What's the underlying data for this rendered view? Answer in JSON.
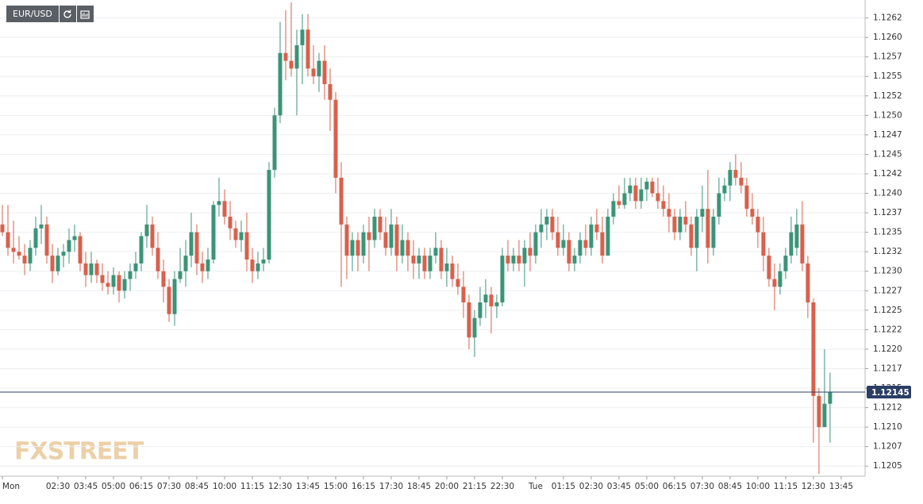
{
  "chart_data": {
    "type": "candlestick",
    "symbol": "EUR/USD",
    "watermark": "FXSTREET",
    "up_color": "#3b9478",
    "down_color": "#d9604c",
    "grid": true,
    "last_price": 1.12145,
    "xlim": [
      -0.43,
      155.3
    ],
    "ylim": [
      1.12037,
      1.12648
    ],
    "xticks": [
      {
        "value": 0,
        "label": "Mon"
      },
      {
        "value": 10,
        "label": "02:30"
      },
      {
        "value": 15,
        "label": "03:45"
      },
      {
        "value": 20,
        "label": "05:00"
      },
      {
        "value": 25,
        "label": "06:15"
      },
      {
        "value": 30,
        "label": "07:30"
      },
      {
        "value": 35,
        "label": "08:45"
      },
      {
        "value": 40,
        "label": "10:00"
      },
      {
        "value": 45,
        "label": "11:15"
      },
      {
        "value": 50,
        "label": "12:30"
      },
      {
        "value": 55,
        "label": "13:45"
      },
      {
        "value": 60,
        "label": "15:00"
      },
      {
        "value": 65,
        "label": "16:15"
      },
      {
        "value": 70,
        "label": "17:30"
      },
      {
        "value": 75,
        "label": "18:45"
      },
      {
        "value": 80,
        "label": "20:00"
      },
      {
        "value": 85,
        "label": "21:15"
      },
      {
        "value": 90,
        "label": "22:30"
      },
      {
        "value": 96,
        "label": "Tue"
      },
      {
        "value": 101,
        "label": "01:15"
      },
      {
        "value": 106,
        "label": "02:30"
      },
      {
        "value": 111,
        "label": "03:45"
      },
      {
        "value": 116,
        "label": "05:00"
      },
      {
        "value": 121,
        "label": "06:15"
      },
      {
        "value": 126,
        "label": "07:30"
      },
      {
        "value": 131,
        "label": "08:45"
      },
      {
        "value": 136,
        "label": "10:00"
      },
      {
        "value": 141,
        "label": "11:15"
      },
      {
        "value": 146,
        "label": "12:30"
      },
      {
        "value": 151,
        "label": "13:45"
      }
    ],
    "yticks": [
      {
        "value": 1.1205,
        "label": "1.1205"
      },
      {
        "value": 1.12075,
        "label": "1.1207"
      },
      {
        "value": 1.121,
        "label": "1.1210"
      },
      {
        "value": 1.12125,
        "label": "1.1212"
      },
      {
        "value": 1.1215,
        "label": "1.1215"
      },
      {
        "value": 1.12175,
        "label": "1.1217"
      },
      {
        "value": 1.122,
        "label": "1.1220"
      },
      {
        "value": 1.12225,
        "label": "1.1222"
      },
      {
        "value": 1.1225,
        "label": "1.1225"
      },
      {
        "value": 1.12275,
        "label": "1.1227"
      },
      {
        "value": 1.123,
        "label": "1.1230"
      },
      {
        "value": 1.12325,
        "label": "1.1232"
      },
      {
        "value": 1.1235,
        "label": "1.1235"
      },
      {
        "value": 1.12375,
        "label": "1.1237"
      },
      {
        "value": 1.124,
        "label": "1.1240"
      },
      {
        "value": 1.12425,
        "label": "1.1242"
      },
      {
        "value": 1.1245,
        "label": "1.1245"
      },
      {
        "value": 1.12475,
        "label": "1.1247"
      },
      {
        "value": 1.125,
        "label": "1.1250"
      },
      {
        "value": 1.12525,
        "label": "1.1252"
      },
      {
        "value": 1.1255,
        "label": "1.1255"
      },
      {
        "value": 1.12575,
        "label": "1.1257"
      },
      {
        "value": 1.126,
        "label": "1.1260"
      },
      {
        "value": 1.12625,
        "label": "1.1262"
      }
    ],
    "candles": [
      [
        1.1236,
        1.12385,
        1.12345,
        1.1235
      ],
      [
        1.1235,
        1.12385,
        1.1232,
        1.1233
      ],
      [
        1.1233,
        1.12365,
        1.1231,
        1.12325
      ],
      [
        1.12325,
        1.12345,
        1.12315,
        1.1232
      ],
      [
        1.1232,
        1.12335,
        1.12295,
        1.1231
      ],
      [
        1.1231,
        1.1234,
        1.123,
        1.1233
      ],
      [
        1.1233,
        1.1237,
        1.1232,
        1.12355
      ],
      [
        1.12355,
        1.12385,
        1.12335,
        1.1236
      ],
      [
        1.1236,
        1.1237,
        1.1231,
        1.1232
      ],
      [
        1.1232,
        1.12335,
        1.12285,
        1.123
      ],
      [
        1.123,
        1.1233,
        1.12295,
        1.1232
      ],
      [
        1.1232,
        1.12335,
        1.12305,
        1.12325
      ],
      [
        1.12325,
        1.12355,
        1.1231,
        1.1234
      ],
      [
        1.1234,
        1.1236,
        1.12325,
        1.12345
      ],
      [
        1.12345,
        1.1235,
        1.123,
        1.1231
      ],
      [
        1.1231,
        1.12325,
        1.1228,
        1.12295
      ],
      [
        1.12295,
        1.12325,
        1.12285,
        1.1231
      ],
      [
        1.1231,
        1.12315,
        1.12285,
        1.12295
      ],
      [
        1.12295,
        1.1231,
        1.12275,
        1.12285
      ],
      [
        1.12285,
        1.123,
        1.1227,
        1.1228
      ],
      [
        1.1228,
        1.12305,
        1.1227,
        1.12295
      ],
      [
        1.12295,
        1.123,
        1.1226,
        1.12275
      ],
      [
        1.12275,
        1.123,
        1.12265,
        1.1229
      ],
      [
        1.1229,
        1.1231,
        1.12275,
        1.123
      ],
      [
        1.123,
        1.12325,
        1.1229,
        1.1231
      ],
      [
        1.1231,
        1.1235,
        1.123,
        1.12345
      ],
      [
        1.12345,
        1.12385,
        1.1233,
        1.1236
      ],
      [
        1.1236,
        1.1237,
        1.1232,
        1.1233
      ],
      [
        1.1233,
        1.1235,
        1.1229,
        1.123
      ],
      [
        1.123,
        1.12315,
        1.1226,
        1.1228
      ],
      [
        1.1228,
        1.1229,
        1.12235,
        1.12245
      ],
      [
        1.12245,
        1.123,
        1.1223,
        1.1229
      ],
      [
        1.1229,
        1.1233,
        1.12285,
        1.123
      ],
      [
        1.123,
        1.1234,
        1.1228,
        1.1232
      ],
      [
        1.1232,
        1.12375,
        1.12305,
        1.1235
      ],
      [
        1.1235,
        1.1236,
        1.12295,
        1.1231
      ],
      [
        1.1231,
        1.12325,
        1.12285,
        1.123
      ],
      [
        1.123,
        1.1233,
        1.1229,
        1.12315
      ],
      [
        1.12315,
        1.1239,
        1.1231,
        1.12385
      ],
      [
        1.12385,
        1.1242,
        1.1237,
        1.1239
      ],
      [
        1.1239,
        1.12405,
        1.1236,
        1.1237
      ],
      [
        1.1237,
        1.1239,
        1.1234,
        1.12355
      ],
      [
        1.12355,
        1.12365,
        1.1233,
        1.1234
      ],
      [
        1.1234,
        1.12365,
        1.12325,
        1.1235
      ],
      [
        1.1235,
        1.12375,
        1.123,
        1.12315
      ],
      [
        1.12315,
        1.1233,
        1.12285,
        1.123
      ],
      [
        1.123,
        1.12325,
        1.1229,
        1.1231
      ],
      [
        1.1231,
        1.1233,
        1.123,
        1.12315
      ],
      [
        1.12315,
        1.1244,
        1.1231,
        1.1243
      ],
      [
        1.1243,
        1.1251,
        1.1242,
        1.125
      ],
      [
        1.125,
        1.1262,
        1.1249,
        1.1258
      ],
      [
        1.1258,
        1.12635,
        1.12545,
        1.1257
      ],
      [
        1.1257,
        1.12645,
        1.1255,
        1.1256
      ],
      [
        1.1256,
        1.1261,
        1.125,
        1.1259
      ],
      [
        1.1259,
        1.1263,
        1.1254,
        1.1261
      ],
      [
        1.1261,
        1.1263,
        1.1255,
        1.1256
      ],
      [
        1.1256,
        1.1259,
        1.1254,
        1.1255
      ],
      [
        1.1255,
        1.1258,
        1.1253,
        1.1257
      ],
      [
        1.1257,
        1.1259,
        1.1252,
        1.1254
      ],
      [
        1.1254,
        1.1256,
        1.1248,
        1.1252
      ],
      [
        1.1252,
        1.1253,
        1.124,
        1.1242
      ],
      [
        1.1242,
        1.1244,
        1.1228,
        1.1236
      ],
      [
        1.1236,
        1.1237,
        1.1229,
        1.1232
      ],
      [
        1.1232,
        1.1235,
        1.123,
        1.1234
      ],
      [
        1.1234,
        1.1235,
        1.123,
        1.1232
      ],
      [
        1.1232,
        1.1236,
        1.1231,
        1.1235
      ],
      [
        1.1235,
        1.1237,
        1.123,
        1.1234
      ],
      [
        1.1234,
        1.1238,
        1.1233,
        1.1237
      ],
      [
        1.1237,
        1.1238,
        1.1234,
        1.1235
      ],
      [
        1.1235,
        1.1237,
        1.1232,
        1.1233
      ],
      [
        1.1233,
        1.1238,
        1.1232,
        1.1236
      ],
      [
        1.1236,
        1.1237,
        1.123,
        1.1232
      ],
      [
        1.1232,
        1.1236,
        1.1231,
        1.1234
      ],
      [
        1.1234,
        1.1235,
        1.123,
        1.1232
      ],
      [
        1.1232,
        1.1234,
        1.1229,
        1.1231
      ],
      [
        1.1231,
        1.1233,
        1.1229,
        1.1232
      ],
      [
        1.1232,
        1.1233,
        1.1229,
        1.123
      ],
      [
        1.123,
        1.1233,
        1.1229,
        1.1232
      ],
      [
        1.1232,
        1.1235,
        1.1231,
        1.1233
      ],
      [
        1.1233,
        1.1234,
        1.1229,
        1.123
      ],
      [
        1.123,
        1.1233,
        1.1228,
        1.1231
      ],
      [
        1.1231,
        1.1232,
        1.1228,
        1.1229
      ],
      [
        1.1229,
        1.1231,
        1.1227,
        1.1228
      ],
      [
        1.1228,
        1.123,
        1.1224,
        1.1226
      ],
      [
        1.1226,
        1.1227,
        1.122,
        1.12215
      ],
      [
        1.12215,
        1.1225,
        1.1219,
        1.1224
      ],
      [
        1.1224,
        1.1228,
        1.1223,
        1.1226
      ],
      [
        1.1226,
        1.1229,
        1.1224,
        1.1227
      ],
      [
        1.1227,
        1.1228,
        1.1222,
        1.12255
      ],
      [
        1.12255,
        1.1227,
        1.1224,
        1.1226
      ],
      [
        1.1226,
        1.1233,
        1.12255,
        1.1232
      ],
      [
        1.1232,
        1.1234,
        1.123,
        1.1231
      ],
      [
        1.1231,
        1.1233,
        1.123,
        1.1232
      ],
      [
        1.1232,
        1.1234,
        1.123,
        1.1231
      ],
      [
        1.1231,
        1.1234,
        1.1228,
        1.1233
      ],
      [
        1.1233,
        1.1235,
        1.123,
        1.1232
      ],
      [
        1.1232,
        1.1236,
        1.1231,
        1.1235
      ],
      [
        1.1235,
        1.1238,
        1.1233,
        1.1236
      ],
      [
        1.1236,
        1.1238,
        1.1234,
        1.1237
      ],
      [
        1.1237,
        1.1238,
        1.1234,
        1.1235
      ],
      [
        1.1235,
        1.1237,
        1.1232,
        1.1233
      ],
      [
        1.1233,
        1.1236,
        1.1232,
        1.1234
      ],
      [
        1.1234,
        1.1235,
        1.123,
        1.1231
      ],
      [
        1.1231,
        1.1233,
        1.123,
        1.1232
      ],
      [
        1.1232,
        1.1235,
        1.1231,
        1.1234
      ],
      [
        1.1234,
        1.1236,
        1.1232,
        1.1233
      ],
      [
        1.1233,
        1.1237,
        1.1232,
        1.1236
      ],
      [
        1.1236,
        1.1238,
        1.1234,
        1.1235
      ],
      [
        1.1235,
        1.1237,
        1.1231,
        1.1232
      ],
      [
        1.1232,
        1.1238,
        1.1232,
        1.1237
      ],
      [
        1.1237,
        1.124,
        1.1236,
        1.1239
      ],
      [
        1.1239,
        1.1241,
        1.1238,
        1.12385
      ],
      [
        1.12385,
        1.1242,
        1.1238,
        1.124
      ],
      [
        1.124,
        1.1242,
        1.1239,
        1.1241
      ],
      [
        1.1241,
        1.1242,
        1.1238,
        1.1239
      ],
      [
        1.1239,
        1.1242,
        1.1238,
        1.12405
      ],
      [
        1.12405,
        1.1242,
        1.1239,
        1.12415
      ],
      [
        1.12415,
        1.1242,
        1.12395,
        1.124
      ],
      [
        1.124,
        1.1242,
        1.1238,
        1.1239
      ],
      [
        1.1239,
        1.1241,
        1.1237,
        1.1238
      ],
      [
        1.1238,
        1.124,
        1.1235,
        1.1237
      ],
      [
        1.1237,
        1.1238,
        1.1234,
        1.1235
      ],
      [
        1.1235,
        1.1238,
        1.1234,
        1.1237
      ],
      [
        1.1237,
        1.1239,
        1.1235,
        1.1236
      ],
      [
        1.1236,
        1.1237,
        1.1232,
        1.1233
      ],
      [
        1.1233,
        1.1238,
        1.123,
        1.1237
      ],
      [
        1.1237,
        1.1241,
        1.1235,
        1.1238
      ],
      [
        1.1238,
        1.1243,
        1.1231,
        1.1233
      ],
      [
        1.1233,
        1.1238,
        1.1232,
        1.1237
      ],
      [
        1.1237,
        1.1242,
        1.1236,
        1.124
      ],
      [
        1.124,
        1.1242,
        1.1239,
        1.1241
      ],
      [
        1.1241,
        1.1244,
        1.1239,
        1.1243
      ],
      [
        1.1243,
        1.1245,
        1.1241,
        1.1242
      ],
      [
        1.1242,
        1.1244,
        1.124,
        1.1241
      ],
      [
        1.1241,
        1.1242,
        1.1237,
        1.1238
      ],
      [
        1.1238,
        1.124,
        1.1236,
        1.1237
      ],
      [
        1.1237,
        1.1238,
        1.1233,
        1.1235
      ],
      [
        1.1235,
        1.1237,
        1.123,
        1.1232
      ],
      [
        1.1232,
        1.1233,
        1.1228,
        1.1229
      ],
      [
        1.1229,
        1.1231,
        1.1225,
        1.1228
      ],
      [
        1.1228,
        1.1231,
        1.1227,
        1.123
      ],
      [
        1.123,
        1.1233,
        1.1229,
        1.1232
      ],
      [
        1.1232,
        1.1237,
        1.1231,
        1.1235
      ],
      [
        1.1233,
        1.1238,
        1.1232,
        1.1236
      ],
      [
        1.1236,
        1.1239,
        1.123,
        1.1231
      ],
      [
        1.1231,
        1.1232,
        1.1224,
        1.1226
      ],
      [
        1.1226,
        1.12265,
        1.1208,
        1.1214
      ],
      [
        1.1214,
        1.1215,
        1.1204,
        1.121
      ],
      [
        1.121,
        1.122,
        1.121,
        1.1213
      ],
      [
        1.1213,
        1.1217,
        1.1208,
        1.12145
      ]
    ]
  }
}
